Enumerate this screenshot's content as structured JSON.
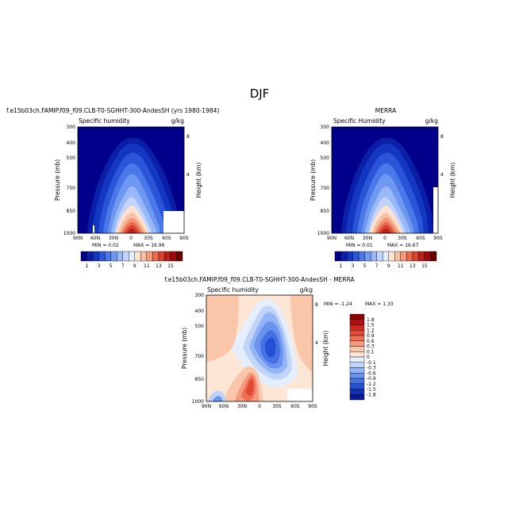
{
  "page": {
    "season": "DJF"
  },
  "chart_data": [
    {
      "type": "heatmap",
      "run_title": "f.e15b03ch.FAMIP.f09_f09.CLB-T0-SGHHT-300-AndesSH (yrs 1980-1984)",
      "title": "Specific humidity",
      "units": "g/kg",
      "ylabel": "Pressure (mb)",
      "ylabel_right": "Height (km)",
      "x_ticks": [
        "90N",
        "60N",
        "30N",
        "0",
        "30S",
        "60S",
        "90S"
      ],
      "y_ticks": [
        "1000",
        "850",
        "700",
        "500",
        "400",
        "300"
      ],
      "y_ticks_right": [
        "4",
        "8"
      ],
      "min_label": "MIN =  0.02",
      "max_label": "MAX =  16.96",
      "colorbar": {
        "levels": [
          "1",
          "3",
          "5",
          "7",
          "9",
          "11",
          "13",
          "15"
        ],
        "colors": [
          "#00008b",
          "#0a1fa8",
          "#1437c2",
          "#2a55d8",
          "#4a78e8",
          "#6f98f2",
          "#98b8f8",
          "#c2d4fb",
          "#e4ecfd",
          "#fbe2d2",
          "#f7c0a4",
          "#f29a78",
          "#e96e4f",
          "#d8432e",
          "#bb2018",
          "#990a0a",
          "#6b0000"
        ]
      }
    },
    {
      "type": "heatmap",
      "run_title": "MERRA",
      "title": "Specific Humidity",
      "units": "g/kg",
      "ylabel": "Pressure (mb)",
      "ylabel_right": "Height (km)",
      "x_ticks": [
        "90N",
        "60N",
        "30N",
        "0",
        "30S",
        "60S",
        "90S"
      ],
      "y_ticks": [
        "1000",
        "850",
        "700",
        "500",
        "400",
        "300"
      ],
      "y_ticks_right": [
        "4",
        "8"
      ],
      "min_label": "MIN =  0.01",
      "max_label": "MAX =  16.67"
    },
    {
      "type": "heatmap",
      "run_title": "f.e15b03ch.FAMIP.f09_f09.CLB-T0-SGHHT-300-AndesSH - MERRA",
      "title": "Specific humidity",
      "units": "g/kg",
      "ylabel": "Pressure (mb)",
      "ylabel_right": "Height (km)",
      "x_ticks": [
        "90N",
        "60N",
        "30N",
        "0",
        "30S",
        "60S",
        "90S"
      ],
      "y_ticks": [
        "1000",
        "850",
        "700",
        "500",
        "400",
        "300"
      ],
      "y_ticks_right": [
        "4",
        "8"
      ],
      "min_label": "MIN =  -1.24",
      "max_label": "MAX =  1.33",
      "colorbar": {
        "levels": [
          "1.8",
          "1.5",
          "1.2",
          "0.9",
          "0.6",
          "0.3",
          "0.1",
          "0",
          "-0.1",
          "-0.3",
          "-0.6",
          "-0.9",
          "-1.2",
          "-1.5",
          "-1.8"
        ],
        "colors": [
          "#8b0000",
          "#b01010",
          "#cc2a1e",
          "#e04a34",
          "#ee6e52",
          "#f59a7e",
          "#fac6aa",
          "#fde6d4",
          "#e4eefd",
          "#c0d4fa",
          "#93b4f5",
          "#6a93ee",
          "#4470e3",
          "#2450d2",
          "#1030b8",
          "#0a1a90"
        ]
      }
    }
  ]
}
